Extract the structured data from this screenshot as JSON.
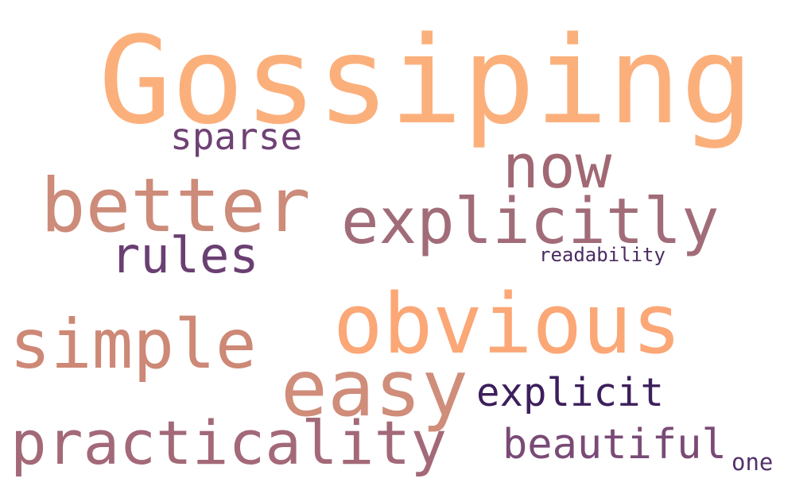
{
  "word_cloud": {
    "words": [
      {
        "key": "gossiping",
        "text": "Gossiping",
        "color": "#fbb07c"
      },
      {
        "key": "sparse",
        "text": "sparse",
        "color": "#6f4274"
      },
      {
        "key": "now",
        "text": "now",
        "color": "#a16873"
      },
      {
        "key": "better",
        "text": "better",
        "color": "#cd8b79"
      },
      {
        "key": "explicitly",
        "text": "explicitly",
        "color": "#a16c78"
      },
      {
        "key": "rules",
        "text": "rules",
        "color": "#6a3f72"
      },
      {
        "key": "readability",
        "text": "readability",
        "color": "#4b2c62"
      },
      {
        "key": "obvious",
        "text": "obvious",
        "color": "#fba776"
      },
      {
        "key": "simple",
        "text": "simple",
        "color": "#cd8876"
      },
      {
        "key": "easy",
        "text": "easy",
        "color": "#cf8d7a"
      },
      {
        "key": "explicit",
        "text": "explicit",
        "color": "#3c1f5c"
      },
      {
        "key": "practicality",
        "text": "practicality",
        "color": "#a36978"
      },
      {
        "key": "beautiful",
        "text": "beautiful",
        "color": "#7a4a76"
      },
      {
        "key": "one",
        "text": "one",
        "color": "#52306a"
      }
    ]
  }
}
